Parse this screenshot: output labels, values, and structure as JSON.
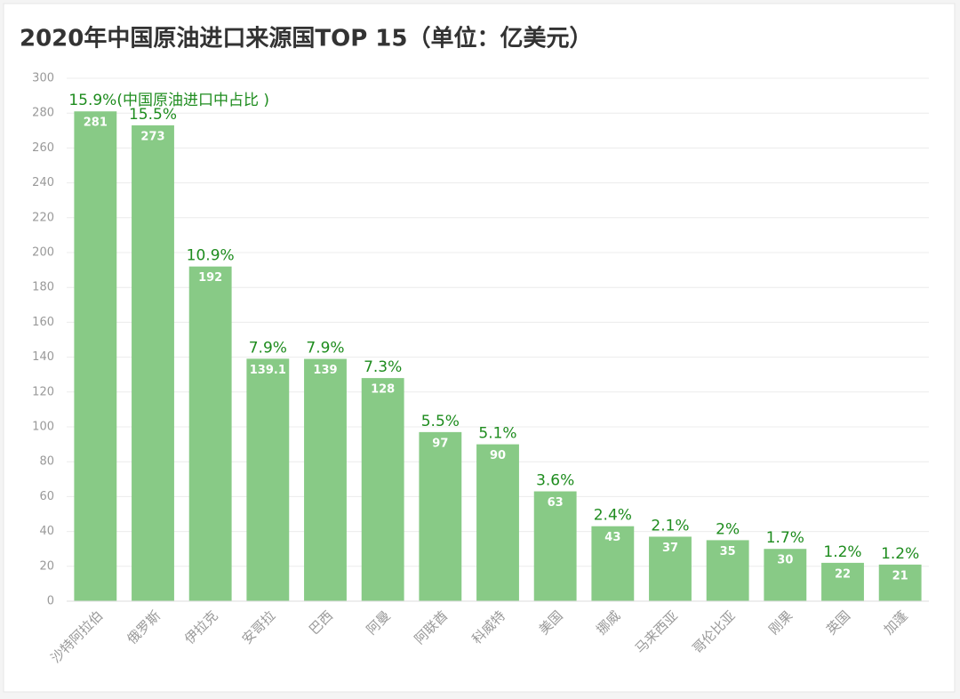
{
  "chart_data": {
    "type": "bar",
    "title": "2020年中国原油进口来源国TOP 15（单位：亿美元）",
    "categories": [
      "沙特阿拉伯",
      "俄罗斯",
      "伊拉克",
      "安哥拉",
      "巴西",
      "阿曼",
      "阿联酋",
      "科威特",
      "美国",
      "挪威",
      "马来西亚",
      "哥伦比亚",
      "刚果",
      "英国",
      "加蓬"
    ],
    "values": [
      281,
      273,
      192,
      139.1,
      139,
      128,
      97,
      90,
      63,
      43,
      37,
      35,
      30,
      22,
      21
    ],
    "annotations": [
      "15.9%(中国原油进口中占比 )",
      "15.5%",
      "10.9%",
      "7.9%",
      "7.9%",
      "7.3%",
      "5.5%",
      "5.1%",
      "3.6%",
      "2.4%",
      "2.1%",
      "2%",
      "1.7%",
      "1.2%",
      "1.2%"
    ],
    "color": "#88ca86",
    "ylim": [
      0,
      300
    ],
    "yticks": [
      0,
      20,
      40,
      60,
      80,
      100,
      120,
      140,
      160,
      180,
      200,
      220,
      240,
      260,
      280,
      300
    ],
    "grid": true
  }
}
